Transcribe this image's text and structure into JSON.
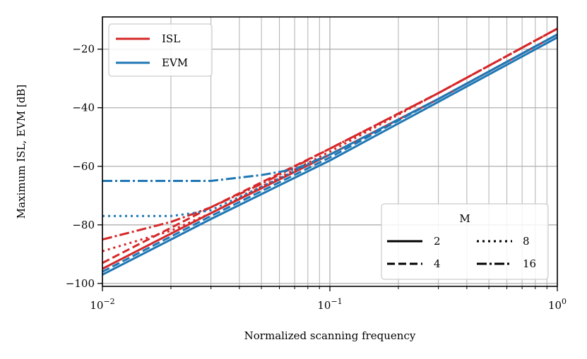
{
  "chart_data": {
    "type": "line",
    "xlabel": "Normalized scanning frequency",
    "ylabel": "Maximum ISL, EVM [dB]",
    "xscale": "log",
    "xlim": [
      0.01,
      1
    ],
    "ylim": [
      -101,
      -9
    ],
    "x_ticks": [
      {
        "value": 0.01,
        "base": "10",
        "exp": "−2"
      },
      {
        "value": 0.1,
        "base": "10",
        "exp": "−1"
      },
      {
        "value": 1,
        "base": "10",
        "exp": "0"
      }
    ],
    "y_ticks": [
      {
        "value": -100,
        "label": "−100"
      },
      {
        "value": -80,
        "label": "−80"
      },
      {
        "value": -60,
        "label": "−60"
      },
      {
        "value": -40,
        "label": "−40"
      },
      {
        "value": -20,
        "label": "−20"
      }
    ],
    "grid": true,
    "colors": {
      "ISL": "#d62728",
      "EVM": "#1f77b4"
    },
    "legend_metric": {
      "placement": "top-left",
      "entries": [
        {
          "name": "ISL",
          "color": "#d62728"
        },
        {
          "name": "EVM",
          "color": "#1f77b4"
        }
      ]
    },
    "legend_M": {
      "placement": "bottom-right",
      "title": "M",
      "entries": [
        {
          "label": "2",
          "dash": "solid"
        },
        {
          "label": "8",
          "dash": "dotted"
        },
        {
          "label": "4",
          "dash": "dashed"
        },
        {
          "label": "16",
          "dash": "dashdot"
        }
      ]
    },
    "series": [
      {
        "metric": "ISL",
        "M": "2",
        "dash": "solid",
        "x": [
          0.01,
          0.03,
          0.1,
          0.3,
          1
        ],
        "y": [
          -95,
          -76,
          -56,
          -37,
          -15
        ]
      },
      {
        "metric": "ISL",
        "M": "4",
        "dash": "dashed",
        "x": [
          0.01,
          0.03,
          0.1,
          0.3,
          1
        ],
        "y": [
          -93,
          -74,
          -54,
          -35,
          -13
        ]
      },
      {
        "metric": "ISL",
        "M": "8",
        "dash": "dotted",
        "x": [
          0.01,
          0.02,
          0.03,
          0.05,
          0.1,
          0.3,
          1
        ],
        "y": [
          -89,
          -82,
          -76,
          -67,
          -55,
          -35,
          -13
        ]
      },
      {
        "metric": "ISL",
        "M": "16",
        "dash": "dashdot",
        "x": [
          0.01,
          0.02,
          0.03,
          0.05,
          0.1,
          0.3,
          1
        ],
        "y": [
          -85,
          -79,
          -74,
          -66,
          -54,
          -35,
          -13
        ]
      },
      {
        "metric": "EVM",
        "M": "2",
        "dash": "solid",
        "x": [
          0.01,
          0.03,
          0.1,
          0.3,
          1
        ],
        "y": [
          -97,
          -78,
          -58,
          -38,
          -16
        ]
      },
      {
        "metric": "EVM",
        "M": "4",
        "dash": "dashed",
        "x": [
          0.01,
          0.03,
          0.1,
          0.3,
          1
        ],
        "y": [
          -96,
          -77,
          -57,
          -37,
          -15
        ]
      },
      {
        "metric": "EVM",
        "M": "8",
        "dash": "dotted",
        "x": [
          0.01,
          0.02,
          0.025,
          0.03,
          0.05,
          0.1,
          0.3,
          1
        ],
        "y": [
          -77,
          -77,
          -76,
          -75,
          -67,
          -56,
          -37,
          -15
        ]
      },
      {
        "metric": "EVM",
        "M": "16",
        "dash": "dashdot",
        "x": [
          0.01,
          0.02,
          0.03,
          0.05,
          0.07,
          0.1,
          0.3,
          1
        ],
        "y": [
          -65,
          -65,
          -65,
          -63,
          -61,
          -56,
          -37,
          -15
        ]
      }
    ]
  }
}
